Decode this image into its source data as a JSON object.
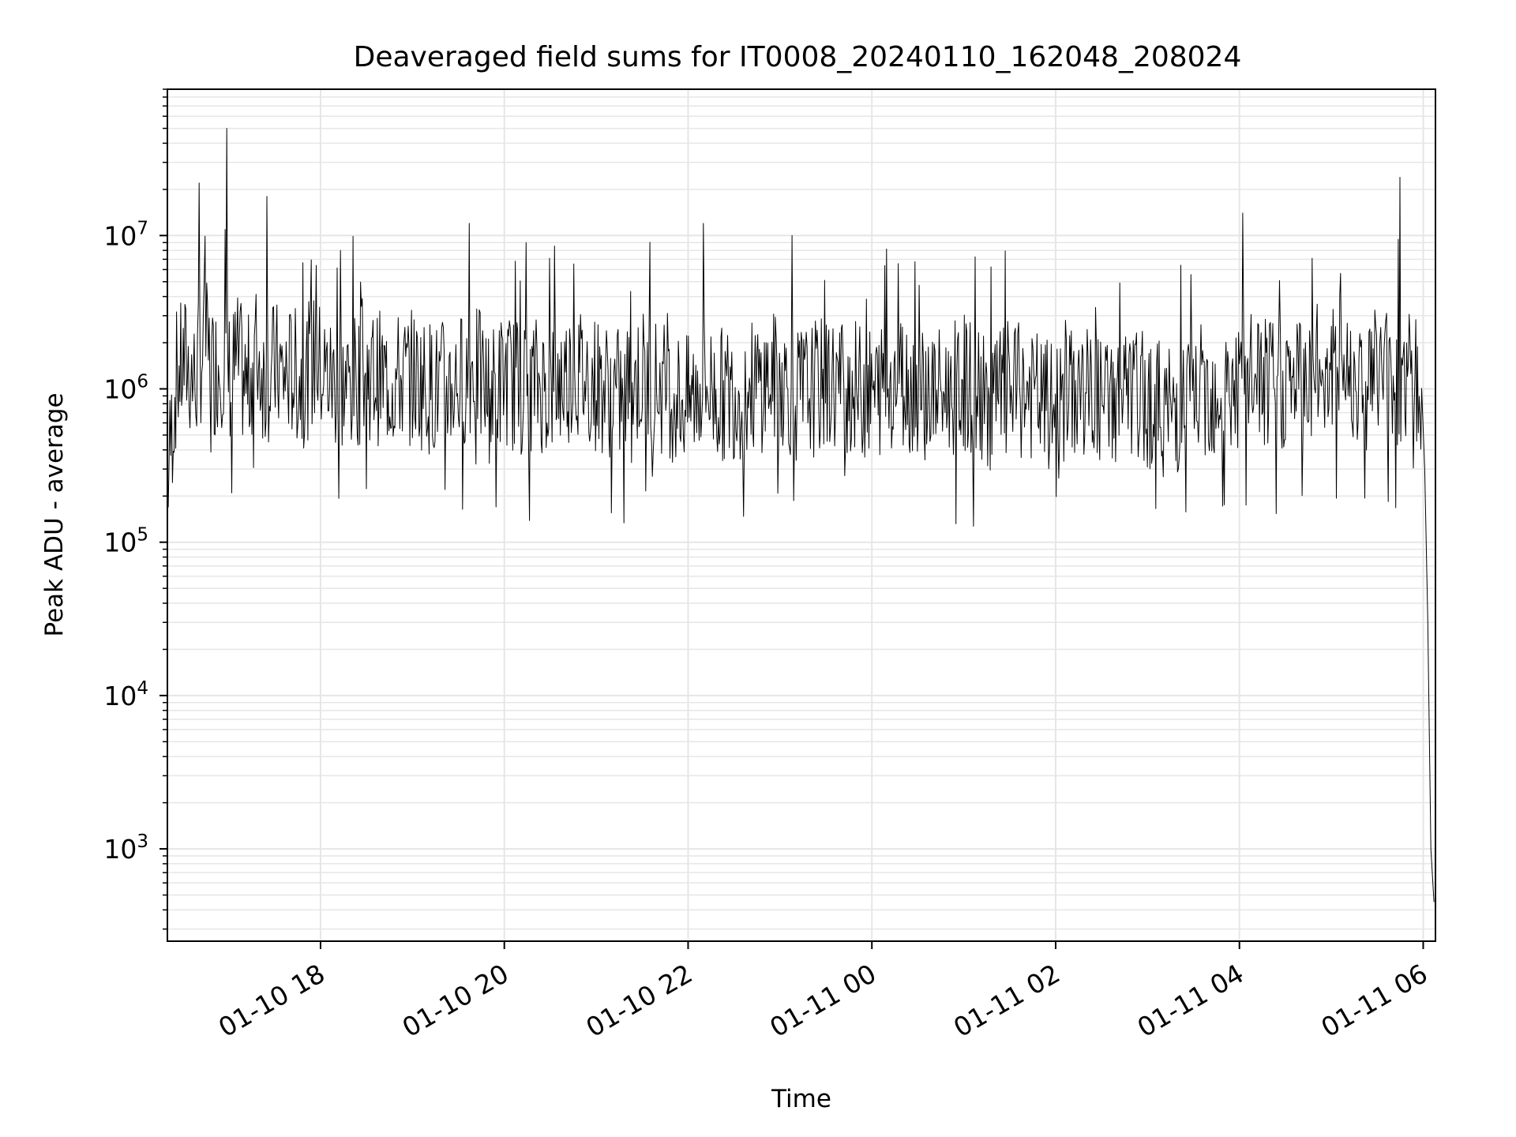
{
  "chart_data": {
    "type": "line",
    "title": "Deaveraged field sums for IT0008_20240110_162048_208024",
    "xlabel": "Time",
    "ylabel": "Peak ADU - average",
    "yscale": "log",
    "x_range": [
      "2024-01-10 16:20",
      "2024-01-11 06:08"
    ],
    "ylim": [
      250,
      90000000
    ],
    "grid": true,
    "x_ticks": [
      {
        "label": "01-10 18",
        "time": "2024-01-10 18:00"
      },
      {
        "label": "01-10 20",
        "time": "2024-01-10 20:00"
      },
      {
        "label": "01-10 22",
        "time": "2024-01-10 22:00"
      },
      {
        "label": "01-11 00",
        "time": "2024-01-11 00:00"
      },
      {
        "label": "01-11 02",
        "time": "2024-01-11 02:00"
      },
      {
        "label": "01-11 04",
        "time": "2024-01-11 04:00"
      },
      {
        "label": "01-11 06",
        "time": "2024-01-11 06:00"
      }
    ],
    "y_ticks": [
      {
        "base": "10",
        "exp": "3",
        "value": 1000
      },
      {
        "base": "10",
        "exp": "4",
        "value": 10000
      },
      {
        "base": "10",
        "exp": "5",
        "value": 100000
      },
      {
        "base": "10",
        "exp": "6",
        "value": 1000000
      },
      {
        "base": "10",
        "exp": "7",
        "value": 10000000
      }
    ],
    "line_color": "#000000",
    "grid_color": "#e6e6e6",
    "series": [
      {
        "x": [
          "2024-01-10 16:20",
          "2024-01-10 16:26",
          "2024-01-10 16:32",
          "2024-01-10 16:38",
          "2024-01-10 16:44",
          "2024-01-10 16:50",
          "2024-01-10 16:56",
          "2024-01-10 17:01",
          "2024-01-10 17:06",
          "2024-01-10 17:12",
          "2024-01-10 17:18",
          "2024-01-10 17:24",
          "2024-01-10 17:30",
          "2024-01-10 17:36",
          "2024-01-10 17:42",
          "2024-01-10 17:48",
          "2024-01-10 17:55",
          "2024-01-10 18:05",
          "2024-01-10 18:15",
          "2024-01-10 18:30",
          "2024-01-10 18:45",
          "2024-01-10 19:00",
          "2024-01-10 19:15",
          "2024-01-10 19:30",
          "2024-01-10 19:40",
          "2024-01-10 19:50",
          "2024-01-10 20:00",
          "2024-01-10 20:10",
          "2024-01-10 20:20",
          "2024-01-10 20:30",
          "2024-01-10 20:45",
          "2024-01-10 21:00",
          "2024-01-10 21:15",
          "2024-01-10 21:30",
          "2024-01-10 21:45",
          "2024-01-10 22:00",
          "2024-01-10 22:10",
          "2024-01-10 22:20",
          "2024-01-10 22:40",
          "2024-01-10 23:00",
          "2024-01-10 23:10",
          "2024-01-10 23:20",
          "2024-01-10 23:40",
          "2024-01-11 00:00",
          "2024-01-11 00:15",
          "2024-01-11 00:30",
          "2024-01-11 00:45",
          "2024-01-11 01:00",
          "2024-01-11 01:15",
          "2024-01-11 01:30",
          "2024-01-11 01:45",
          "2024-01-11 02:00",
          "2024-01-11 02:15",
          "2024-01-11 02:30",
          "2024-01-11 02:45",
          "2024-01-11 03:00",
          "2024-01-11 03:15",
          "2024-01-11 03:30",
          "2024-01-11 03:45",
          "2024-01-11 04:00",
          "2024-01-11 04:10",
          "2024-01-11 04:20",
          "2024-01-11 04:35",
          "2024-01-11 04:50",
          "2024-01-11 05:05",
          "2024-01-11 05:20",
          "2024-01-11 05:35",
          "2024-01-11 05:45",
          "2024-01-11 05:52",
          "2024-01-11 05:58",
          "2024-01-11 06:01",
          "2024-01-11 06:03",
          "2024-01-11 06:05",
          "2024-01-11 06:07"
        ],
        "y": [
          250000,
          1200000,
          1500000,
          1100000,
          2000000,
          1300000,
          1600000,
          1200000,
          1500000,
          1000000,
          1800000,
          1100000,
          1400000,
          1200000,
          1300000,
          1100000,
          1500000,
          1200000,
          1000000,
          1300000,
          1100000,
          1200000,
          1000000,
          1100000,
          1400000,
          900000,
          1200000,
          1000000,
          1100000,
          1000000,
          1300000,
          1100000,
          900000,
          1200000,
          1000000,
          800000,
          1100000,
          900000,
          1000000,
          1200000,
          900000,
          1000000,
          1100000,
          900000,
          1200000,
          1000000,
          900000,
          1100000,
          800000,
          1000000,
          900000,
          700000,
          1000000,
          800000,
          900000,
          850000,
          700000,
          900000,
          1000000,
          1000000,
          1200000,
          1000000,
          1100000,
          1300000,
          1500000,
          1200000,
          1400000,
          1100000,
          1300000,
          900000,
          300000,
          30000,
          1000,
          450
        ],
        "spikes": [
          {
            "x": "2024-01-10 16:41",
            "y": 22000000
          },
          {
            "x": "2024-01-10 16:59",
            "y": 50000000
          },
          {
            "x": "2024-01-10 17:25",
            "y": 18000000
          },
          {
            "x": "2024-01-10 19:37",
            "y": 12000000
          },
          {
            "x": "2024-01-10 20:14",
            "y": 9000000
          },
          {
            "x": "2024-01-10 22:10",
            "y": 12000000
          },
          {
            "x": "2024-01-10 23:08",
            "y": 10000000
          },
          {
            "x": "2024-01-11 04:02",
            "y": 14000000
          },
          {
            "x": "2024-01-11 05:45",
            "y": 24000000
          }
        ]
      }
    ]
  }
}
